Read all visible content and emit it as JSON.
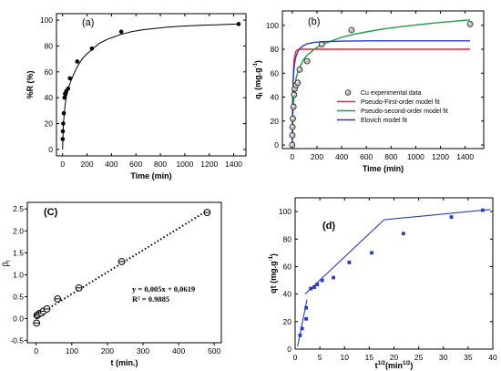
{
  "chart_data": [
    {
      "id": "a",
      "type": "line",
      "panel_label": "(a)",
      "xlabel": "Time (min)",
      "ylabel": "%R (%)",
      "xlim": [
        -50,
        1500
      ],
      "ylim": [
        -5,
        105
      ],
      "xticks": [
        0,
        200,
        400,
        600,
        800,
        1000,
        1200,
        1400
      ],
      "yticks": [
        0,
        20,
        40,
        60,
        80,
        100
      ],
      "series": [
        {
          "kind": "points",
          "color": "#000000",
          "x": [
            1,
            2,
            5,
            10,
            15,
            20,
            30,
            45,
            60,
            120,
            240,
            480,
            1440
          ],
          "y": [
            8,
            14,
            20,
            28,
            40,
            43,
            45,
            47,
            55,
            68,
            78,
            91,
            97
          ]
        },
        {
          "kind": "curve",
          "color": "#000000",
          "x": [
            0,
            5,
            10,
            20,
            30,
            45,
            60,
            90,
            120,
            160,
            200,
            250,
            300,
            360,
            420,
            480,
            560,
            650,
            750,
            850,
            950,
            1050,
            1150,
            1250,
            1350,
            1440
          ],
          "y": [
            0,
            16,
            24,
            34,
            40,
            46,
            51,
            58,
            64,
            70,
            74,
            78,
            82,
            85,
            87,
            89,
            91,
            92.5,
            93.6,
            94.5,
            95.2,
            95.7,
            96.1,
            96.4,
            96.7,
            97
          ]
        }
      ]
    },
    {
      "id": "b",
      "type": "line",
      "panel_label": "(b)",
      "xlabel": "Time (min)",
      "ylabel": "q_t (mg.g⁻¹)",
      "ylabel_main": "q",
      "ylabel_sub": "t",
      "ylabel_rest": " (mg.g",
      "ylabel_sup": "-1",
      "ylabel_end": ")",
      "xlim": [
        -80,
        1550
      ],
      "ylim": [
        -3,
        112
      ],
      "xticks": [
        0,
        200,
        400,
        600,
        800,
        1000,
        1200,
        1400
      ],
      "yticks": [
        0,
        20,
        40,
        60,
        80,
        100
      ],
      "legend_position": "center-right",
      "series": [
        {
          "name": "Cu experimental data",
          "kind": "points",
          "color": "#000000",
          "x": [
            0,
            1,
            2,
            5,
            10,
            15,
            20,
            30,
            45,
            60,
            120,
            240,
            480,
            1440
          ],
          "y": [
            0,
            8,
            15,
            22,
            32,
            42,
            47,
            50,
            52,
            63,
            70,
            84,
            96,
            101
          ]
        },
        {
          "name": "Pseudo-First-order model fit",
          "kind": "curve",
          "color": "#e8262b",
          "x": [
            0,
            2,
            5,
            10,
            15,
            20,
            30,
            45,
            60,
            90,
            120,
            180,
            240,
            400,
            700,
            1000,
            1440
          ],
          "y": [
            0,
            22,
            44,
            63,
            71,
            75,
            78.5,
            79.6,
            79.9,
            80,
            80,
            80,
            80,
            80,
            80,
            80,
            80
          ]
        },
        {
          "name": "Pseudo-second-order model fit",
          "kind": "curve",
          "color": "#1f9d45",
          "x": [
            0,
            5,
            10,
            20,
            30,
            45,
            60,
            90,
            120,
            180,
            240,
            320,
            400,
            500,
            600,
            700,
            800,
            900,
            1000,
            1100,
            1200,
            1300,
            1440
          ],
          "y": [
            0,
            25,
            36,
            48,
            55,
            61,
            65,
            71,
            75,
            80,
            84,
            87,
            90,
            92.5,
            94.5,
            96.3,
            97.8,
            99.1,
            100.3,
            101.4,
            102.4,
            103.3,
            104.5
          ]
        },
        {
          "name": "Elovich model fit",
          "kind": "curve",
          "color": "#2a3bbf",
          "x": [
            0,
            2,
            5,
            10,
            15,
            20,
            30,
            45,
            60,
            90,
            120,
            180,
            240,
            320,
            420,
            600,
            800,
            1000,
            1200,
            1440
          ],
          "y": [
            0,
            28,
            46,
            59,
            65,
            69,
            74,
            78,
            80.5,
            83,
            84.5,
            85.8,
            86.3,
            86.6,
            86.8,
            87,
            87,
            87,
            87,
            87
          ]
        }
      ]
    },
    {
      "id": "c",
      "type": "scatter",
      "panel_label": "(C)",
      "xlabel": "t (min.)",
      "ylabel": "β",
      "ylabel_main": "β",
      "ylabel_sub": "t",
      "xlim": [
        -25,
        520
      ],
      "ylim": [
        -0.55,
        2.65
      ],
      "xticks": [
        0,
        100,
        200,
        300,
        400,
        500
      ],
      "yticks": [
        -0.5,
        0.0,
        0.5,
        1.0,
        1.5,
        2.0,
        2.5
      ],
      "ytick_labels": [
        "-0.5",
        "0.0",
        "0.5",
        "1.0",
        "1.5",
        "2.0",
        "2.5"
      ],
      "equation": "y = 0,005x + 0,0619",
      "r_squared": "R² = 0.9885",
      "fit": {
        "slope": 0.005,
        "intercept": 0.0619,
        "x_range": [
          0,
          480
        ]
      },
      "series": [
        {
          "kind": "points",
          "color": "#000000",
          "x": [
            1,
            2,
            5,
            10,
            15,
            20,
            30,
            60,
            120,
            240,
            480
          ],
          "y": [
            -0.1,
            0.07,
            0.09,
            0.12,
            0.13,
            0.17,
            0.22,
            0.45,
            0.7,
            1.3,
            2.42
          ]
        }
      ]
    },
    {
      "id": "d",
      "type": "line",
      "panel_label": "(d)",
      "xlabel": "t¹ᐟ²(min¹ᐟ²)",
      "xlabel_main": "t",
      "xlabel_sup": "1/2",
      "xlabel_rest": "(min",
      "xlabel_sup2": "1/2",
      "xlabel_end": ")",
      "ylabel": "qt (mg.g⁻¹)",
      "ylabel_main": "qt (mg.g",
      "ylabel_sup": "-1",
      "ylabel_end": ")",
      "xlim": [
        0,
        40
      ],
      "ylim": [
        0,
        110
      ],
      "xticks": [
        0,
        5,
        10,
        15,
        20,
        25,
        30,
        35,
        40
      ],
      "yticks": [
        0,
        20,
        40,
        60,
        80,
        100
      ],
      "series": [
        {
          "kind": "points",
          "color": "#2a3bbf",
          "x": [
            1.0,
            1.41,
            2.24,
            2.24,
            3.16,
            3.87,
            4.47,
            5.48,
            7.75,
            10.95,
            15.49,
            21.91,
            31.62,
            37.95
          ],
          "y": [
            10,
            15,
            22,
            30,
            44,
            45,
            47,
            50,
            52,
            63,
            70,
            84,
            96,
            101
          ]
        },
        {
          "kind": "segment",
          "color": "#2a3bbf",
          "x": [
            0.5,
            2.4
          ],
          "y": [
            2,
            36
          ]
        },
        {
          "kind": "segment",
          "color": "#2a3bbf",
          "x": [
            2.0,
            18.0
          ],
          "y": [
            40,
            94
          ]
        },
        {
          "kind": "segment",
          "color": "#2a3bbf",
          "x": [
            18.0,
            39.5
          ],
          "y": [
            94,
            101.5
          ]
        }
      ]
    }
  ]
}
